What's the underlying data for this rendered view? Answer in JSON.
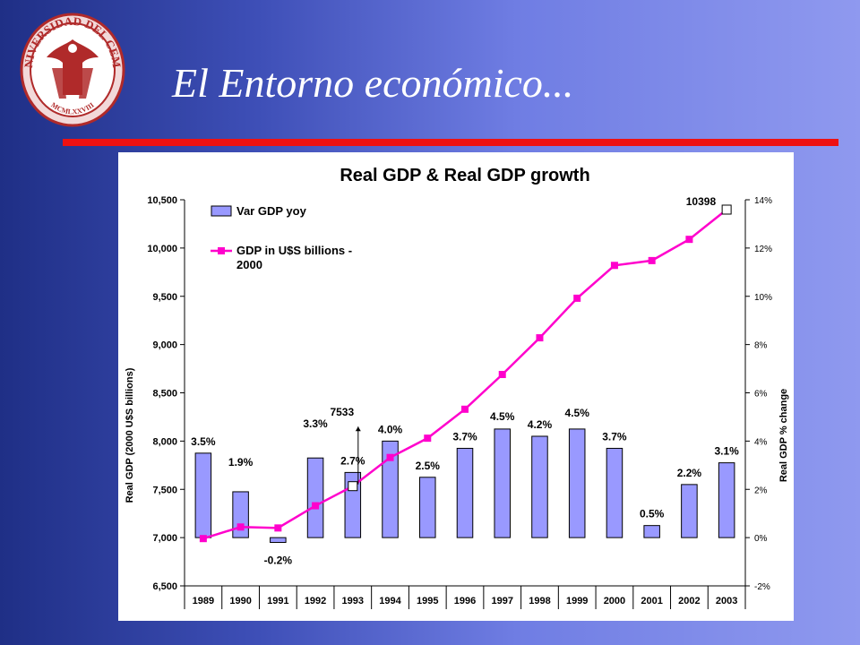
{
  "slide": {
    "title": "El Entorno económico...",
    "accent_color": "#ee1111",
    "logo": {
      "icon": "university-eagle-seal-icon",
      "text_top": "UNIVERSIDAD DEL CEMA",
      "text_bottom": "MCMLXXVIII"
    }
  },
  "chart_data": {
    "type": "bar+line",
    "title": "Real GDP & Real GDP growth",
    "ylabel_left": "Real GDP (2000 U$S billions)",
    "ylabel_right": "Real GDP % change",
    "categories": [
      "1989",
      "1990",
      "1991",
      "1992",
      "1993",
      "1994",
      "1995",
      "1996",
      "1997",
      "1998",
      "1999",
      "2000",
      "2001",
      "2002",
      "2003"
    ],
    "y_left": {
      "min": 6500,
      "max": 10500,
      "step": 500,
      "tick_labels": [
        "6,500",
        "7,000",
        "7,500",
        "8,000",
        "8,500",
        "9,000",
        "9,500",
        "10,000",
        "10,500"
      ]
    },
    "y_right": {
      "min": -2,
      "max": 14,
      "step": 2,
      "tick_labels": [
        "-2%",
        "0%",
        "2%",
        "4%",
        "6%",
        "8%",
        "10%",
        "12%",
        "14%"
      ]
    },
    "legend_position": "top-left",
    "series": [
      {
        "name": "Var GDP yoy",
        "type": "bar",
        "axis": "right",
        "color": "#9999ff",
        "values": [
          3.5,
          1.9,
          -0.2,
          3.3,
          2.7,
          4.0,
          2.5,
          3.7,
          4.5,
          4.2,
          4.5,
          3.7,
          0.5,
          2.2,
          3.1
        ],
        "labels": [
          "3.5%",
          "1.9%",
          "-0.2%",
          "3.3%",
          "2.7%",
          "4.0%",
          "2.5%",
          "3.7%",
          "4.5%",
          "4.2%",
          "4.5%",
          "3.7%",
          "0.5%",
          "2.2%",
          "3.1%"
        ]
      },
      {
        "name": "GDP in U$S billions - 2000",
        "name_lines": [
          "GDP in U$S billions -",
          "2000"
        ],
        "type": "line",
        "axis": "left",
        "color": "#ff00cc",
        "values": [
          6990,
          7110,
          7100,
          7330,
          7533,
          7830,
          8030,
          8330,
          8690,
          9070,
          9480,
          9820,
          9870,
          10090,
          10398
        ]
      }
    ],
    "annotations": [
      {
        "text": "7533",
        "category": "1993"
      },
      {
        "text": "10398",
        "category": "2003"
      }
    ]
  }
}
